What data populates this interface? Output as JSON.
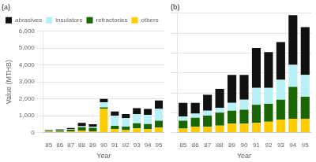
{
  "chart_data": [
    {
      "type": "bar",
      "title": "(a)",
      "stacked": true,
      "grid": true,
      "legend": "upper left",
      "xlabel": "Year",
      "ylabel": "Value (MTHB)",
      "categories": [
        "85",
        "86",
        "87",
        "88",
        "89",
        "90",
        "91",
        "92",
        "93",
        "94",
        "95"
      ],
      "series": [
        {
          "name": "others",
          "color": "#ffcc00",
          "values": [
            50,
            50,
            80,
            120,
            80,
            1400,
            200,
            150,
            250,
            200,
            300
          ]
        },
        {
          "name": "refractories",
          "color": "#1a6600",
          "values": [
            50,
            80,
            100,
            200,
            200,
            100,
            200,
            200,
            300,
            300,
            400
          ]
        },
        {
          "name": "insulators",
          "color": "#b8f0f8",
          "values": [
            20,
            30,
            40,
            60,
            60,
            300,
            600,
            500,
            550,
            550,
            700
          ]
        },
        {
          "name": "abrasives",
          "color": "#111111",
          "values": [
            20,
            30,
            50,
            200,
            150,
            200,
            250,
            250,
            350,
            350,
            500
          ]
        }
      ],
      "ylim": [
        0,
        6000
      ],
      "yticks": [
        0,
        {
          "value": 1000,
          "label": "1,000"
        },
        {
          "value": 2000,
          "label": "2,000"
        },
        {
          "value": 3000,
          "label": "3,000"
        },
        {
          "value": 4000,
          "label": "4,000"
        },
        {
          "value": 5000,
          "label": "5,000"
        },
        {
          "value": 6000,
          "label": "6,000"
        }
      ]
    },
    {
      "type": "bar",
      "title": "(b)",
      "stacked": true,
      "grid": true,
      "tick_labels": "x",
      "xlabel": "Year",
      "categories": [
        "85",
        "86",
        "87",
        "88",
        "89",
        "90",
        "91",
        "92",
        "93",
        "94",
        "95"
      ],
      "series": [
        {
          "name": "others",
          "color": "#ffcc00",
          "values": [
            200,
            300,
            300,
            350,
            450,
            450,
            500,
            550,
            650,
            700,
            700
          ]
        },
        {
          "name": "refractories",
          "color": "#1a6600",
          "values": [
            400,
            450,
            550,
            650,
            650,
            700,
            900,
            900,
            1000,
            1600,
            1100
          ]
        },
        {
          "name": "insulators",
          "color": "#b8f0f8",
          "values": [
            200,
            200,
            250,
            250,
            400,
            500,
            850,
            800,
            1000,
            1100,
            1100
          ]
        },
        {
          "name": "abrasives",
          "color": "#111111",
          "values": [
            700,
            550,
            800,
            950,
            1400,
            1250,
            2000,
            1800,
            1900,
            2500,
            2400
          ]
        }
      ],
      "ylim": [
        0,
        6000
      ],
      "yticks": [
        0,
        1000,
        2000,
        3000,
        4000,
        5000,
        6000
      ]
    }
  ]
}
